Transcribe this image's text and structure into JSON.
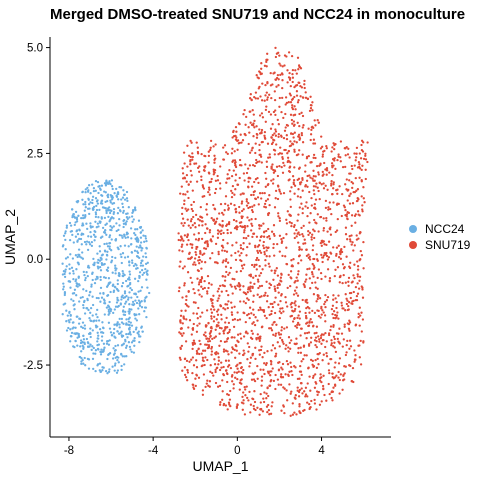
{
  "chart_data": {
    "type": "scatter",
    "title": "Merged DMSO-treated SNU719 and NCC24 in monoculture",
    "xlabel": "UMAP_1",
    "ylabel": "UMAP_2",
    "xlim": [
      -8.9,
      7.3
    ],
    "ylim": [
      -4.2,
      5.25
    ],
    "x_ticks": [
      -8,
      -4,
      0,
      4
    ],
    "y_ticks": [
      -2.5,
      0.0,
      2.5,
      5.0
    ],
    "x_tick_labels": [
      "-8",
      "-4",
      "0",
      "4"
    ],
    "y_tick_labels": [
      "-2.5",
      "0.0",
      "2.5",
      "5.0"
    ],
    "grid": false,
    "legend_position": "right",
    "series": [
      {
        "name": "NCC24",
        "color": "#6aafe3",
        "cluster": {
          "shape": "ellipse",
          "center": [
            -6.3,
            -0.45
          ],
          "x_range": [
            -8.3,
            -4.0
          ],
          "y_range": [
            -2.7,
            2.05
          ],
          "n_points": 950
        }
      },
      {
        "name": "SNU719",
        "color": "#e04a38",
        "cluster": {
          "shape": "blob",
          "x_range": [
            -3.2,
            6.6
          ],
          "y_range": [
            -3.7,
            5.0
          ],
          "n_points": 2400
        }
      }
    ]
  }
}
